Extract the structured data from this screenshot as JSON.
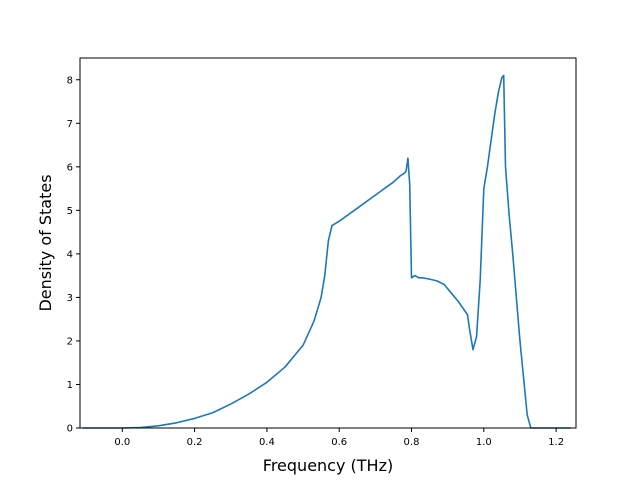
{
  "chart_data": {
    "type": "line",
    "title": "",
    "xlabel": "Frequency (THz)",
    "ylabel": "Density of States",
    "xlim": [
      -0.117,
      1.255
    ],
    "ylim": [
      0,
      8.5
    ],
    "xticks": [
      0.0,
      0.2,
      0.4,
      0.6,
      0.8,
      1.0,
      1.2
    ],
    "xtick_labels": [
      "0.0",
      "0.2",
      "0.4",
      "0.6",
      "0.8",
      "1.0",
      "1.2"
    ],
    "yticks": [
      0,
      1,
      2,
      3,
      4,
      5,
      6,
      7,
      8
    ],
    "ytick_labels": [
      "0",
      "1",
      "2",
      "3",
      "4",
      "5",
      "6",
      "7",
      "8"
    ],
    "grid": false,
    "legend": "none",
    "series_color": "#1f77b4",
    "series": [
      {
        "x": [
          -0.11,
          0.0,
          0.05,
          0.1,
          0.15,
          0.2,
          0.25,
          0.3,
          0.35,
          0.4,
          0.45,
          0.5,
          0.53,
          0.55,
          0.56,
          0.565,
          0.57,
          0.58,
          0.6,
          0.65,
          0.7,
          0.75,
          0.77,
          0.78,
          0.785,
          0.79,
          0.795,
          0.8,
          0.805,
          0.81,
          0.82,
          0.83,
          0.85,
          0.87,
          0.89,
          0.91,
          0.93,
          0.955,
          0.96,
          0.97,
          0.98,
          0.99,
          1.0,
          1.01,
          1.02,
          1.03,
          1.04,
          1.05,
          1.055,
          1.06,
          1.07,
          1.08,
          1.1,
          1.12,
          1.13,
          1.24
        ],
        "y": [
          0.0,
          0.0,
          0.01,
          0.05,
          0.12,
          0.22,
          0.35,
          0.55,
          0.78,
          1.05,
          1.4,
          1.9,
          2.45,
          3.0,
          3.5,
          3.9,
          4.3,
          4.65,
          4.75,
          5.05,
          5.35,
          5.65,
          5.8,
          5.85,
          5.9,
          6.2,
          5.6,
          3.45,
          3.48,
          3.5,
          3.45,
          3.45,
          3.42,
          3.38,
          3.3,
          3.1,
          2.9,
          2.6,
          2.3,
          1.8,
          2.1,
          3.4,
          5.5,
          6.0,
          6.6,
          7.2,
          7.7,
          8.05,
          8.1,
          6.0,
          4.9,
          4.0,
          2.0,
          0.3,
          0.0,
          0.0
        ]
      }
    ]
  }
}
